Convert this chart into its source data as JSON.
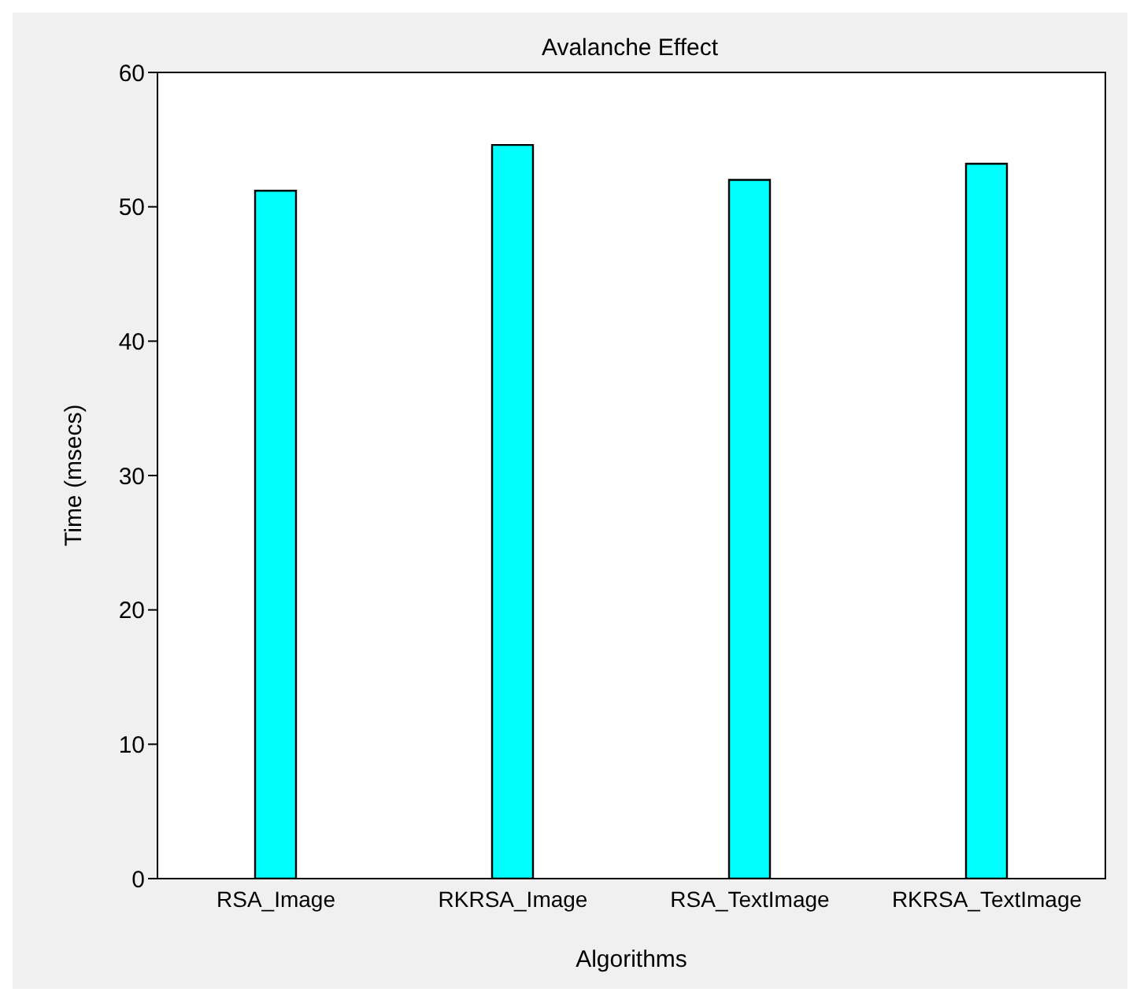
{
  "chart_data": {
    "type": "bar",
    "title": "Avalanche Effect",
    "xlabel": "Algorithms",
    "ylabel": "Time (msecs)",
    "categories": [
      "RSA_Image",
      "RKRSA_Image",
      "RSA_TextImage",
      "RKRSA_TextImage"
    ],
    "values": [
      51.2,
      54.6,
      52.0,
      53.2
    ],
    "color": "#00ffff",
    "ylim": [
      0,
      60
    ],
    "yticks": [
      0,
      10,
      20,
      30,
      40,
      50,
      60
    ]
  }
}
